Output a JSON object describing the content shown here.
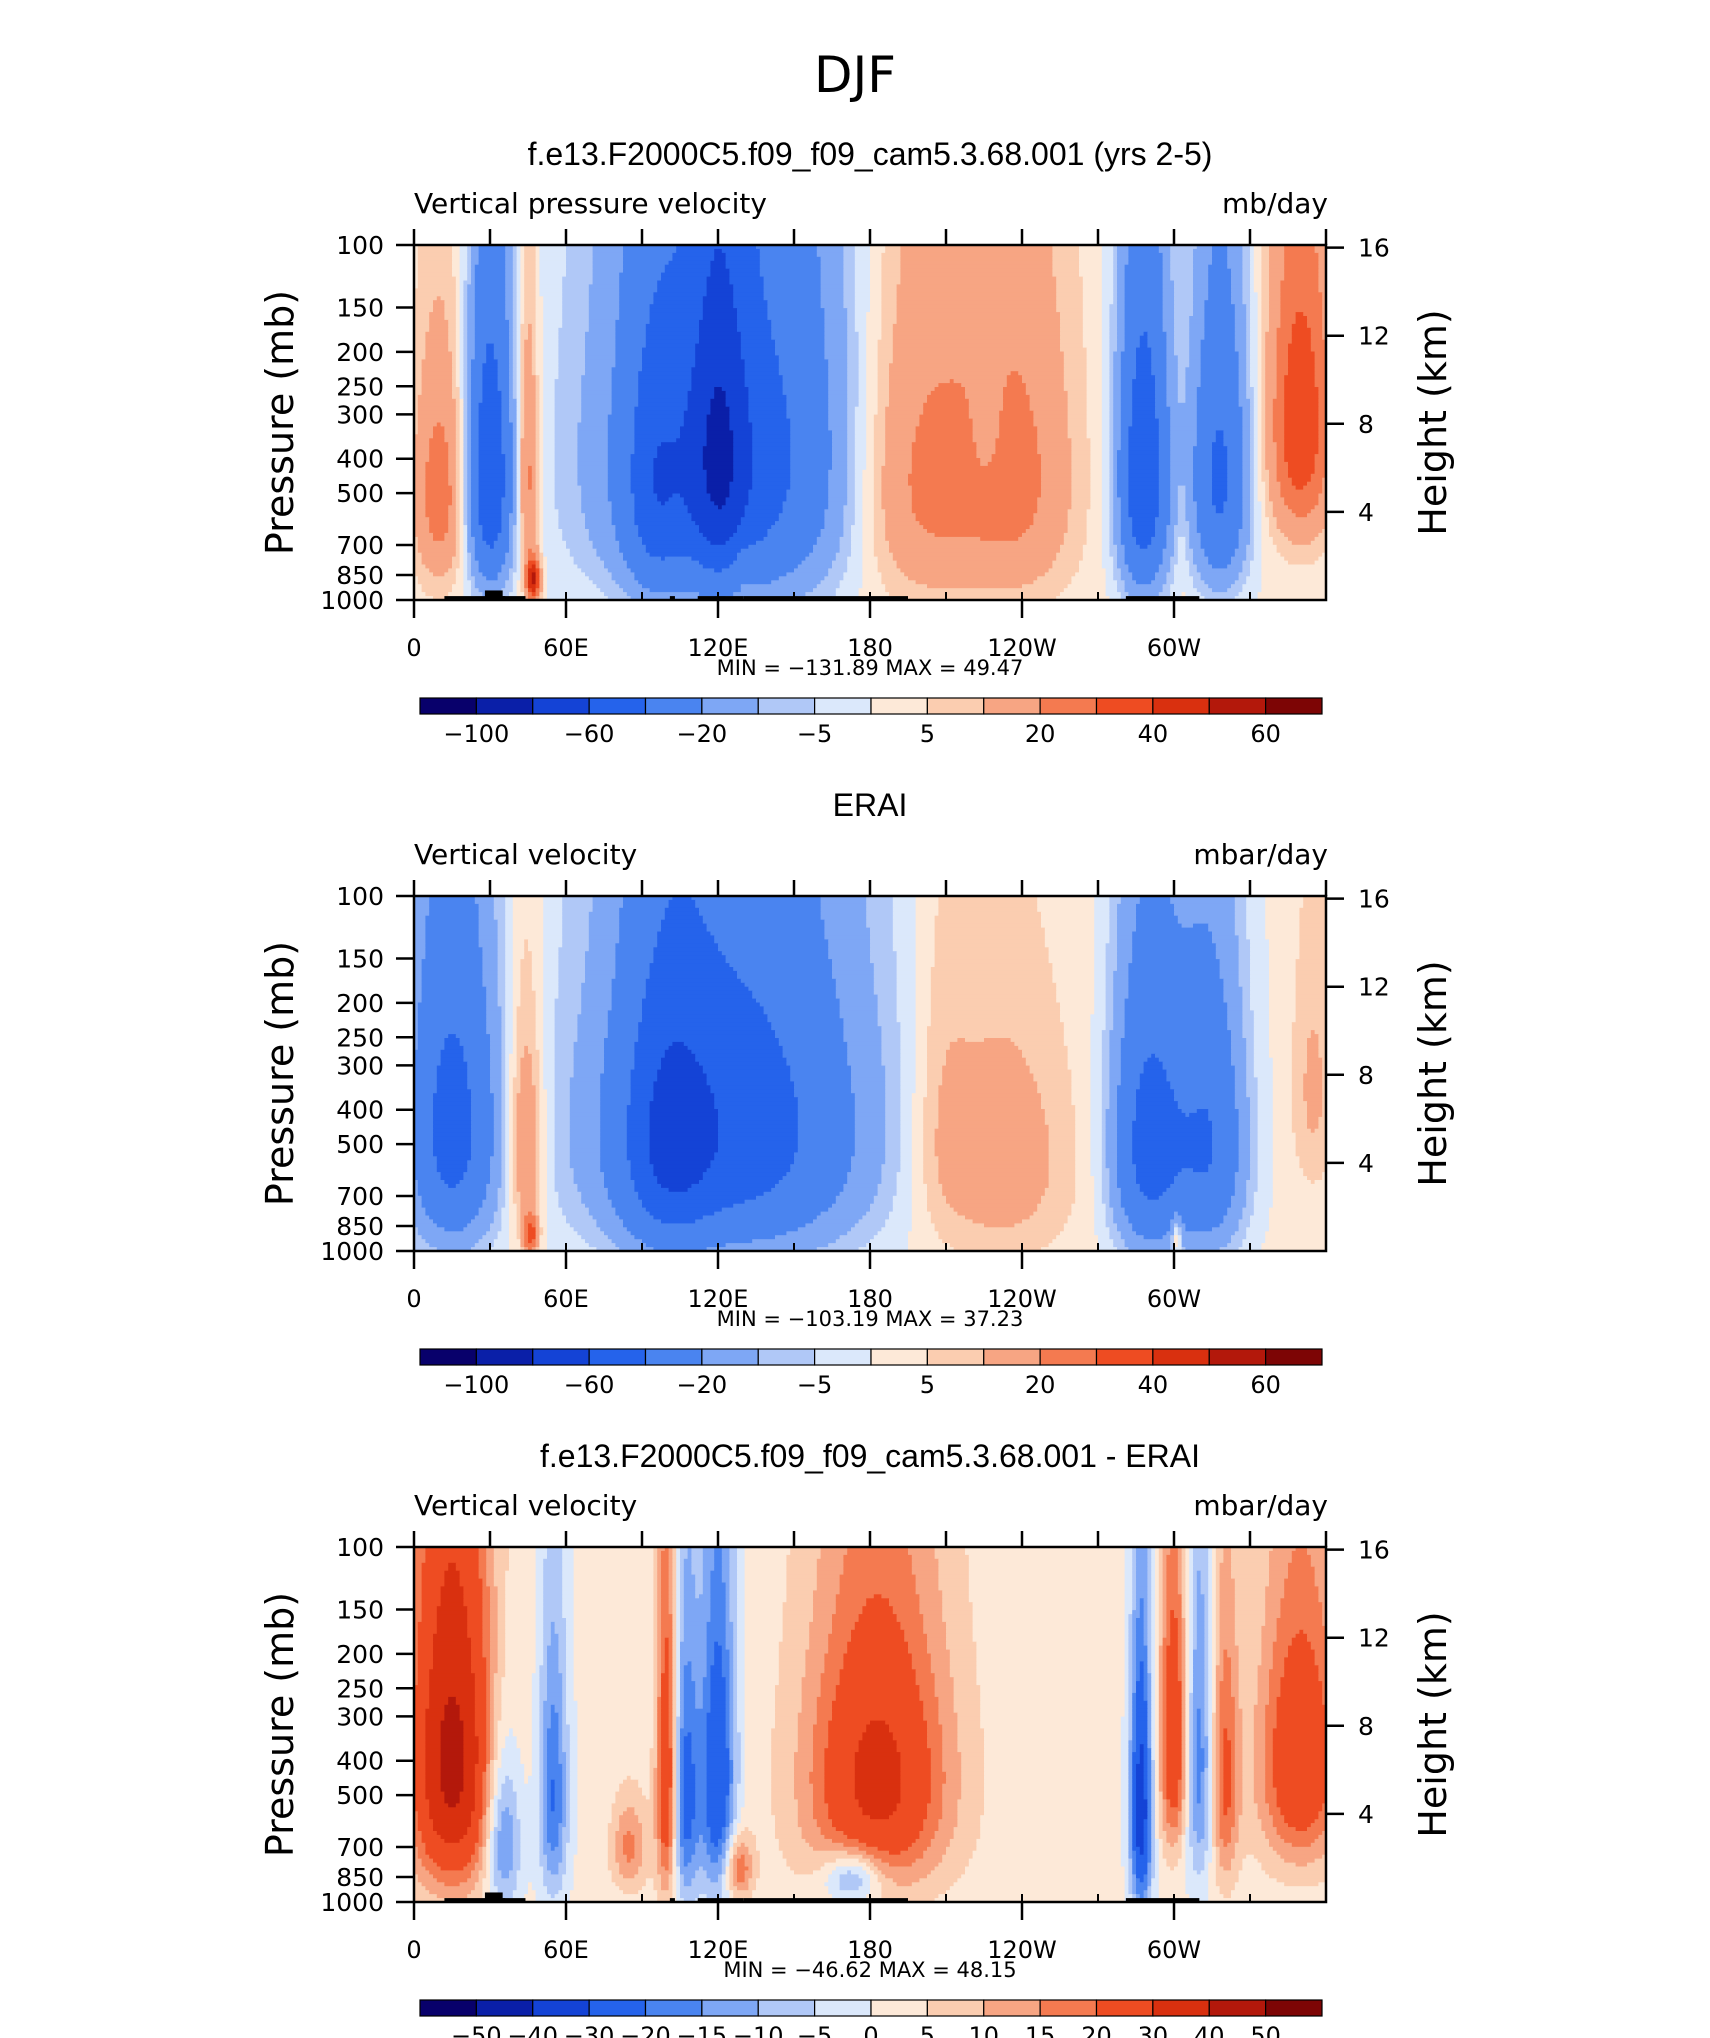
{
  "figure": {
    "title": "DJF",
    "colors": {
      "neg": [
        "#08006b",
        "#0a1fa8",
        "#1443d6",
        "#2563eb",
        "#4a84f0",
        "#7ea7f5",
        "#b0c8f7",
        "#dbe8fb"
      ],
      "pos": [
        "#fde9d8",
        "#fbcdb0",
        "#f7a583",
        "#f47a50",
        "#ee4c22",
        "#d9300f",
        "#b3180b",
        "#7d0505"
      ]
    }
  },
  "chart_data": [
    {
      "type": "heatmap",
      "title": "f.e13.F2000C5.f09_f09_cam5.3.68.001 (yrs 2-5)",
      "left_label": "Vertical pressure velocity",
      "units": "mb/day",
      "ylabel": "Pressure (mb)",
      "y2label": "Height (km)",
      "yticks": [
        "100",
        "150",
        "200",
        "250",
        "300",
        "400",
        "500",
        "700",
        "850",
        "1000"
      ],
      "y_range_mb": [
        100,
        1000
      ],
      "y2ticks": [
        "16",
        "12",
        "8",
        "4"
      ],
      "xticks": [
        "0",
        "60E",
        "120E",
        "180",
        "120W",
        "60W"
      ],
      "x_range_deg": [
        0,
        360
      ],
      "min_max": "MIN = −131.89   MAX =   49.47",
      "colorbar_labels": [
        "−100",
        "−60",
        "−20",
        "−5",
        "5",
        "20",
        "40",
        "60"
      ],
      "levels": [
        -100,
        -80,
        -60,
        -40,
        -20,
        -10,
        -5,
        0,
        5,
        10,
        20,
        30,
        40,
        50,
        60
      ],
      "min": -131.89,
      "max": 49.47,
      "topography": true,
      "features": [
        {
          "lon": 10,
          "p": 500,
          "v": 25,
          "wl": 7,
          "wp": 250
        },
        {
          "lon": 30,
          "p": 450,
          "v": -60,
          "wl": 6,
          "wp": 300
        },
        {
          "lon": 45,
          "p": 450,
          "v": 25,
          "wl": 3,
          "wp": 250
        },
        {
          "lon": 47,
          "p": 880,
          "v": 50,
          "wl": 2,
          "wp": 90
        },
        {
          "lon": 125,
          "p": 400,
          "v": -55,
          "wl": 34,
          "wp": 380
        },
        {
          "lon": 120,
          "p": 400,
          "v": -35,
          "wl": 8,
          "wp": 300
        },
        {
          "lon": 95,
          "p": 500,
          "v": -25,
          "wl": 8,
          "wp": 300
        },
        {
          "lon": 130,
          "p": 800,
          "v": 8,
          "wl": 3,
          "wp": 100
        },
        {
          "lon": 200,
          "p": 450,
          "v": 25,
          "wl": 22,
          "wp": 340
        },
        {
          "lon": 240,
          "p": 450,
          "v": 18,
          "wl": 15,
          "wp": 330
        },
        {
          "lon": 226,
          "p": 300,
          "v": -8,
          "wl": 4,
          "wp": 120
        },
        {
          "lon": 288,
          "p": 450,
          "v": -60,
          "wl": 7,
          "wp": 320
        },
        {
          "lon": 318,
          "p": 450,
          "v": -45,
          "wl": 8,
          "wp": 300
        },
        {
          "lon": 303,
          "p": 700,
          "v": 5,
          "wl": 2,
          "wp": 200
        },
        {
          "lon": 350,
          "p": 320,
          "v": 38,
          "wl": 9,
          "wp": 220
        }
      ]
    },
    {
      "type": "heatmap",
      "title": "ERAI",
      "left_label": "Vertical velocity",
      "units": "mbar/day",
      "ylabel": "Pressure (mb)",
      "y2label": "Height (km)",
      "yticks": [
        "100",
        "150",
        "200",
        "250",
        "300",
        "400",
        "500",
        "700",
        "850",
        "1000"
      ],
      "y_range_mb": [
        100,
        1000
      ],
      "y2ticks": [
        "16",
        "12",
        "8",
        "4"
      ],
      "xticks": [
        "0",
        "60E",
        "120E",
        "180",
        "120W",
        "60W"
      ],
      "x_range_deg": [
        0,
        360
      ],
      "min_max": "MIN = −103.19   MAX =   37.23",
      "colorbar_labels": [
        "−100",
        "−60",
        "−20",
        "−5",
        "5",
        "20",
        "40",
        "60"
      ],
      "levels": [
        -100,
        -80,
        -60,
        -40,
        -20,
        -10,
        -5,
        0,
        5,
        10,
        20,
        30,
        40,
        50,
        60
      ],
      "min": -103.19,
      "max": 37.23,
      "topography": false,
      "features": [
        {
          "lon": 15,
          "p": 450,
          "v": -50,
          "wl": 12,
          "wp": 330
        },
        {
          "lon": 44,
          "p": 500,
          "v": 22,
          "wl": 5,
          "wp": 260
        },
        {
          "lon": 46,
          "p": 900,
          "v": 35,
          "wl": 2,
          "wp": 80
        },
        {
          "lon": 125,
          "p": 450,
          "v": -55,
          "wl": 36,
          "wp": 360
        },
        {
          "lon": 100,
          "p": 500,
          "v": -30,
          "wl": 12,
          "wp": 320
        },
        {
          "lon": 230,
          "p": 550,
          "v": 15,
          "wl": 20,
          "wp": 300
        },
        {
          "lon": 208,
          "p": 400,
          "v": 6,
          "wl": 8,
          "wp": 300
        },
        {
          "lon": 290,
          "p": 500,
          "v": -50,
          "wl": 10,
          "wp": 320
        },
        {
          "lon": 314,
          "p": 500,
          "v": -40,
          "wl": 10,
          "wp": 320
        },
        {
          "lon": 301,
          "p": 900,
          "v": 20,
          "wl": 1.5,
          "wp": 90
        },
        {
          "lon": 355,
          "p": 350,
          "v": 10,
          "wl": 6,
          "wp": 200
        }
      ]
    },
    {
      "type": "heatmap",
      "title": "f.e13.F2000C5.f09_f09_cam5.3.68.001 - ERAI",
      "left_label": "Vertical velocity",
      "units": "mbar/day",
      "ylabel": "Pressure (mb)",
      "y2label": "Height (km)",
      "yticks": [
        "100",
        "150",
        "200",
        "250",
        "300",
        "400",
        "500",
        "700",
        "850",
        "1000"
      ],
      "y_range_mb": [
        100,
        1000
      ],
      "y2ticks": [
        "16",
        "12",
        "8",
        "4"
      ],
      "xticks": [
        "0",
        "60E",
        "120E",
        "180",
        "120W",
        "60W"
      ],
      "x_range_deg": [
        0,
        360
      ],
      "min_max": "MIN = −46.62   MAX =   48.15",
      "colorbar_labels": [
        "−50",
        "−40",
        "−30",
        "−20",
        "−15",
        "−10",
        "−5",
        "0",
        "5",
        "10",
        "15",
        "20",
        "30",
        "40",
        "50"
      ],
      "levels": [
        -50,
        -40,
        -30,
        -20,
        -15,
        -10,
        -5,
        0,
        5,
        10,
        15,
        20,
        30,
        40,
        50
      ],
      "min": -46.62,
      "max": 48.15,
      "topography": true,
      "features": [
        {
          "lon": 15,
          "p": 400,
          "v": 42,
          "wl": 12,
          "wp": 330
        },
        {
          "lon": 35,
          "p": 650,
          "v": -22,
          "wl": 5,
          "wp": 250
        },
        {
          "lon": 55,
          "p": 500,
          "v": -22,
          "wl": 4,
          "wp": 300
        },
        {
          "lon": 85,
          "p": 700,
          "v": 15,
          "wl": 5,
          "wp": 150
        },
        {
          "lon": 100,
          "p": 450,
          "v": 30,
          "wl": 3,
          "wp": 330
        },
        {
          "lon": 107,
          "p": 500,
          "v": -25,
          "wl": 4,
          "wp": 320
        },
        {
          "lon": 120,
          "p": 450,
          "v": -30,
          "wl": 5,
          "wp": 330
        },
        {
          "lon": 128,
          "p": 800,
          "v": 20,
          "wl": 4,
          "wp": 120
        },
        {
          "lon": 183,
          "p": 450,
          "v": 32,
          "wl": 20,
          "wp": 300
        },
        {
          "lon": 173,
          "p": 850,
          "v": -20,
          "wl": 8,
          "wp": 100
        },
        {
          "lon": 287,
          "p": 550,
          "v": -38,
          "wl": 3,
          "wp": 320
        },
        {
          "lon": 300,
          "p": 350,
          "v": 28,
          "wl": 4,
          "wp": 230
        },
        {
          "lon": 310,
          "p": 400,
          "v": -20,
          "wl": 4,
          "wp": 300
        },
        {
          "lon": 320,
          "p": 450,
          "v": 20,
          "wl": 4,
          "wp": 280
        },
        {
          "lon": 350,
          "p": 400,
          "v": 28,
          "wl": 12,
          "wp": 250
        }
      ]
    }
  ]
}
